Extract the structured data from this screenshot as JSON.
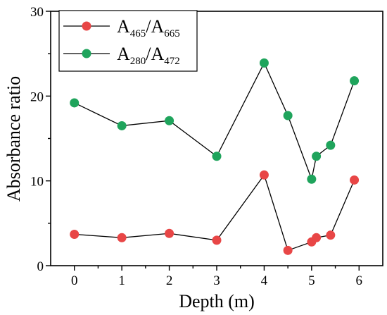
{
  "chart_data": {
    "type": "scatter",
    "xlabel": "Depth (m)",
    "ylabel": "Absorbance ratio",
    "xlim": [
      -0.5,
      6.5
    ],
    "ylim": [
      0,
      30
    ],
    "xticks": [
      0,
      1,
      2,
      3,
      4,
      5,
      6
    ],
    "yticks": [
      0,
      10,
      20,
      30
    ],
    "grid": false,
    "legend_position": "top-left",
    "series": [
      {
        "name": "A465/A665",
        "name_main": "A",
        "name_sub1": "465",
        "name_sep": "/A",
        "name_sub2": "665",
        "color": "#e84646",
        "x": [
          0,
          1,
          2,
          3,
          4,
          4.5,
          5,
          5.1,
          5.4,
          5.9
        ],
        "y": [
          3.7,
          3.3,
          3.8,
          3.0,
          10.7,
          1.8,
          2.8,
          3.3,
          3.6,
          10.1
        ]
      },
      {
        "name": "A280/A472",
        "name_main": "A",
        "name_sub1": "280",
        "name_sep": "/A",
        "name_sub2": "472",
        "color": "#1fa45c",
        "x": [
          0,
          1,
          2,
          3,
          4,
          4.5,
          5,
          5.1,
          5.4,
          5.9
        ],
        "y": [
          19.2,
          16.5,
          17.1,
          12.9,
          23.9,
          17.7,
          10.2,
          12.9,
          14.2,
          21.8
        ]
      }
    ]
  }
}
